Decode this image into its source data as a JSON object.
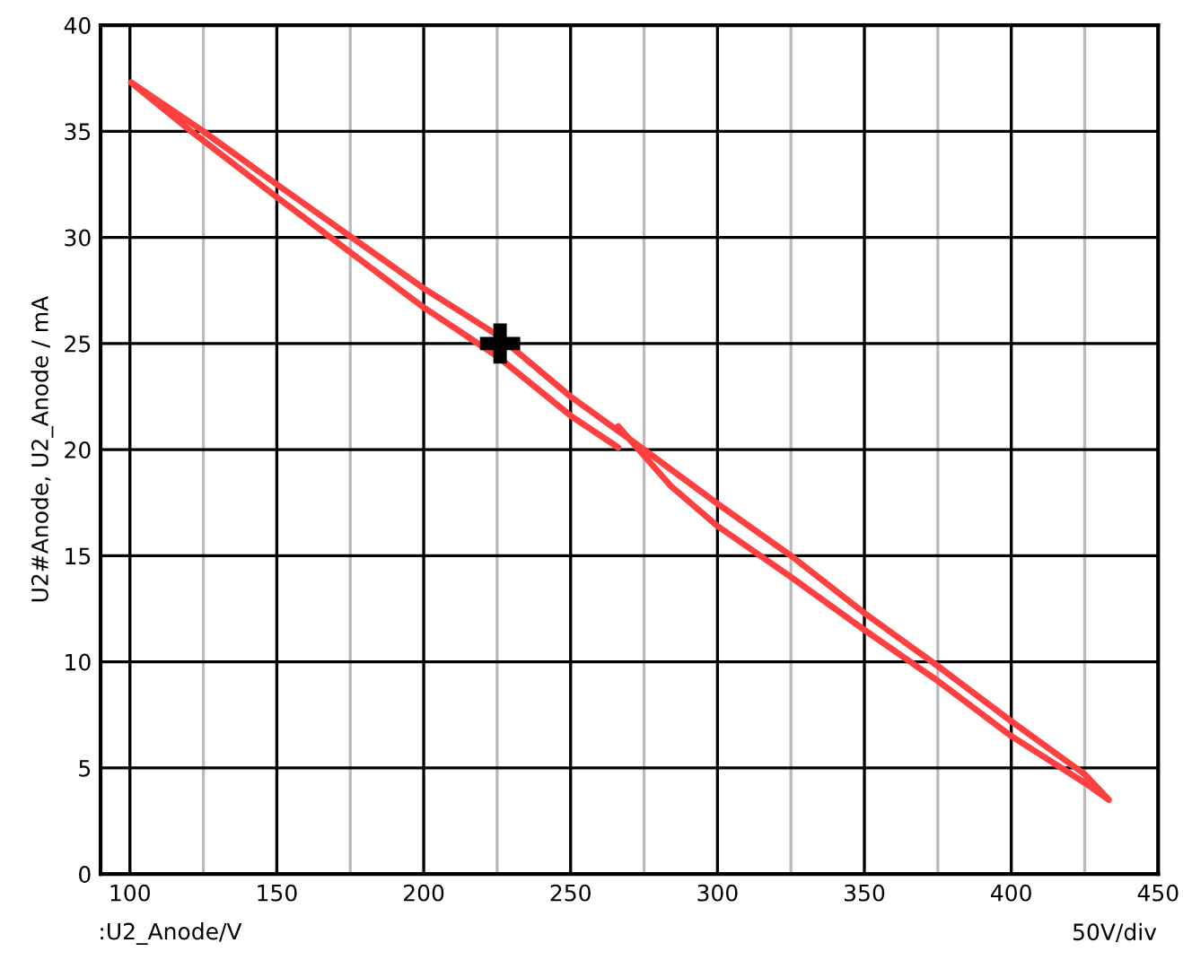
{
  "chart_data": {
    "type": "line",
    "xlabel": ":U2_Anode/V",
    "ylabel": "U2#Anode, U2_Anode / mA",
    "annotations": [
      "50V/div"
    ],
    "xlim": [
      90,
      450
    ],
    "ylim": [
      0,
      40
    ],
    "xticks": [
      100,
      {
        "value": 125,
        "label": null
      },
      150,
      {
        "value": 175,
        "label": null
      },
      200,
      {
        "value": 225,
        "label": null
      },
      250,
      {
        "value": 275,
        "label": null
      },
      300,
      {
        "value": 325,
        "label": null
      },
      350,
      {
        "value": 375,
        "label": null
      },
      400,
      {
        "value": 425,
        "label": null
      },
      450
    ],
    "yticks": [
      0,
      5,
      10,
      15,
      20,
      25,
      30,
      35,
      40
    ],
    "grid": true,
    "marker": "none",
    "line_style": "solid",
    "series": [
      {
        "color": "#ff4040",
        "x": [
          266.2,
          284,
          300,
          325,
          350,
          375,
          400,
          425,
          433.2,
          425,
          400,
          375,
          350,
          325,
          300,
          275,
          250,
          225,
          200,
          150,
          125,
          100.4,
          120.8,
          150,
          200,
          225,
          250,
          266.2
        ],
        "values": [
          21.1,
          18.3,
          16.4,
          14.0,
          11.5,
          9.1,
          6.5,
          4.3,
          3.5,
          4.7,
          7.2,
          9.8,
          12.3,
          15.0,
          17.45,
          20.0,
          22.5,
          25.4,
          27.6,
          32.5,
          35.0,
          37.3,
          35.0,
          31.9,
          26.7,
          24.4,
          21.6,
          20.1
        ]
      },
      {
        "type": "scatter",
        "marker": "cross",
        "color": "#000000",
        "x": [
          226
        ],
        "values": [
          25
        ]
      }
    ]
  }
}
